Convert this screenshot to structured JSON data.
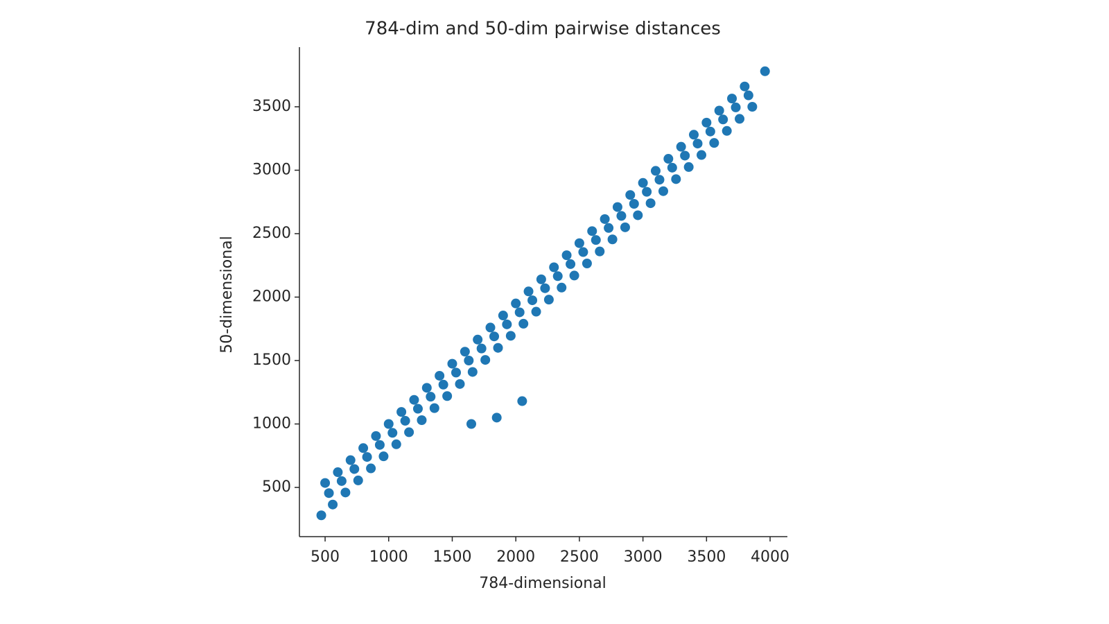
{
  "chart_data": {
    "type": "scatter",
    "title": "784-dim and 50-dim pairwise distances",
    "xlabel": "784-dimensional",
    "ylabel": "50-dimensional",
    "color": "#1f77b4",
    "xlim": [
      298,
      4136
    ],
    "ylim": [
      112,
      3970
    ],
    "xticks": [
      500,
      1000,
      1500,
      2000,
      2500,
      3000,
      3500,
      4000
    ],
    "yticks": [
      500,
      1000,
      1500,
      2000,
      2500,
      3000,
      3500
    ],
    "x": [
      500,
      530,
      560,
      600,
      630,
      660,
      700,
      730,
      760,
      800,
      830,
      860,
      900,
      930,
      960,
      1000,
      1030,
      1060,
      1100,
      1130,
      1160,
      1200,
      1230,
      1260,
      1300,
      1330,
      1360,
      1400,
      1430,
      1460,
      1500,
      1530,
      1560,
      1600,
      1630,
      1660,
      1700,
      1730,
      1760,
      1800,
      1830,
      1860,
      1900,
      1930,
      1960,
      2000,
      2030,
      2060,
      2100,
      2130,
      2160,
      2200,
      2230,
      2260,
      2300,
      2330,
      2360,
      2400,
      2430,
      2460,
      2500,
      2530,
      2560,
      2600,
      2630,
      2660,
      2700,
      2730,
      2760,
      2800,
      2830,
      2860,
      2900,
      2930,
      2960,
      3000,
      3030,
      3060,
      3100,
      3130,
      3160,
      3200,
      3230,
      3260,
      3300,
      3330,
      3360,
      3400,
      3430,
      3460,
      3500,
      3530,
      3560,
      3600,
      3630,
      3660,
      3700,
      3730,
      3760,
      3800,
      3830,
      3860,
      470,
      2050,
      1850,
      3960,
      1650
    ],
    "values": [
      535,
      455,
      365,
      620,
      550,
      460,
      715,
      645,
      555,
      810,
      740,
      650,
      905,
      835,
      745,
      1000,
      930,
      840,
      1095,
      1025,
      935,
      1190,
      1120,
      1030,
      1285,
      1215,
      1125,
      1380,
      1310,
      1220,
      1475,
      1405,
      1315,
      1570,
      1500,
      1410,
      1665,
      1595,
      1505,
      1760,
      1690,
      1600,
      1855,
      1785,
      1695,
      1950,
      1880,
      1790,
      2045,
      1975,
      1885,
      2140,
      2070,
      1980,
      2235,
      2165,
      2075,
      2330,
      2260,
      2170,
      2425,
      2355,
      2265,
      2520,
      2450,
      2360,
      2615,
      2545,
      2455,
      2710,
      2640,
      2550,
      2805,
      2735,
      2645,
      2900,
      2830,
      2740,
      2995,
      2925,
      2835,
      3090,
      3020,
      2930,
      3185,
      3115,
      3025,
      3280,
      3210,
      3120,
      3375,
      3305,
      3215,
      3470,
      3400,
      3310,
      3565,
      3495,
      3405,
      3660,
      3590,
      3500,
      280,
      1180,
      1050,
      3780,
      1000
    ]
  }
}
